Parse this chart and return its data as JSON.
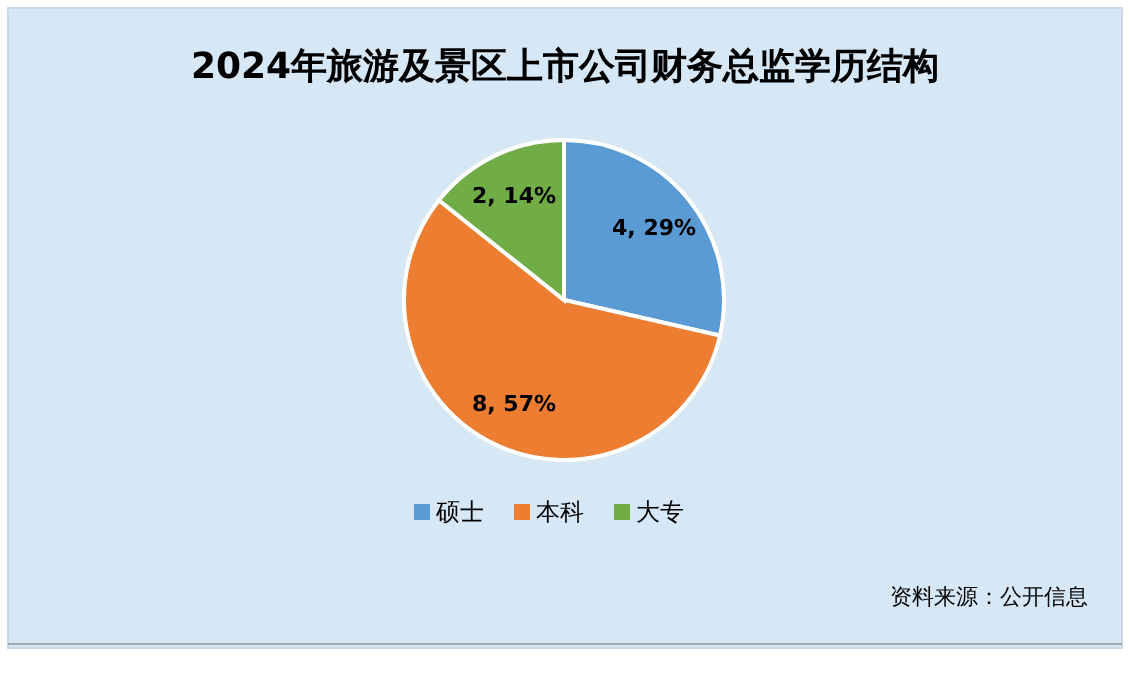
{
  "chart_data": {
    "type": "pie",
    "title": "2024年旅游及景区上市公司财务总监学历结构",
    "categories": [
      "硕士",
      "本科",
      "大专"
    ],
    "values": [
      4,
      8,
      2
    ],
    "colors": [
      "#5b9bd5",
      "#ed7d31",
      "#70ad47"
    ],
    "value_labels": [
      "4, 29%",
      "8, 57%",
      "2, 14%"
    ],
    "legend": "bottom",
    "annotations": [
      "资料来源：公开信息"
    ]
  }
}
